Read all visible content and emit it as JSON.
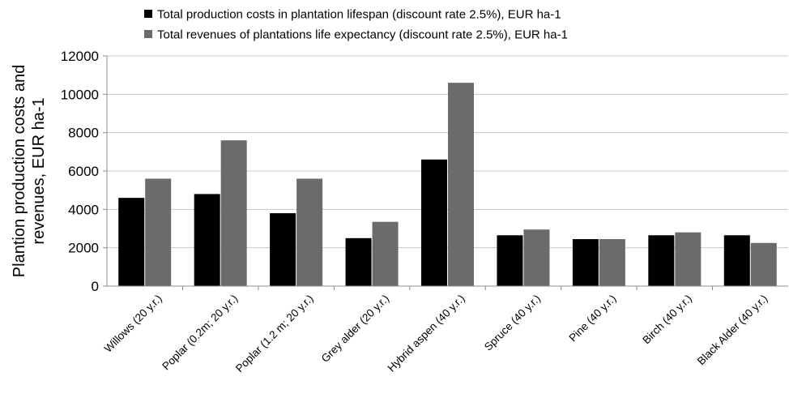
{
  "chart_data": {
    "type": "bar",
    "title": "",
    "xlabel": "",
    "ylabel_lines": [
      "Plantion production costs and",
      "revenues, EUR ha-1"
    ],
    "ylim": [
      0,
      12000
    ],
    "yticks": [
      0,
      2000,
      4000,
      6000,
      8000,
      10000,
      12000
    ],
    "ytick_labels": [
      "0",
      "2000",
      "4000",
      "6000",
      "8000",
      "10000",
      "12000"
    ],
    "grid": true,
    "legend_position": "top",
    "categories": [
      "Willows (20 y.r.)",
      "Poplar (0.2m; 20 y.r.)",
      "Poplar (1.2 m; 20 y.r.)",
      "Grey alder (20 y.r.)",
      "Hybrid aspen (40 y.r.)",
      "Spruce (40 y.r.)",
      "Pine (40 y.r.)",
      "Birch (40 y.r.)",
      "Black Alder (40 y.r.)"
    ],
    "series": [
      {
        "name": "Total production costs in plantation lifespan (discount rate 2.5%), EUR ha-1",
        "color": "#000000",
        "values": [
          4600,
          4800,
          3800,
          2500,
          6600,
          2650,
          2450,
          2650,
          2650
        ]
      },
      {
        "name": "Total revenues of plantations life expectancy (discount rate 2.5%), EUR ha-1",
        "color": "#6b6b6b",
        "values": [
          5600,
          7600,
          5600,
          3350,
          10600,
          2950,
          2450,
          2800,
          2250
        ]
      }
    ]
  }
}
